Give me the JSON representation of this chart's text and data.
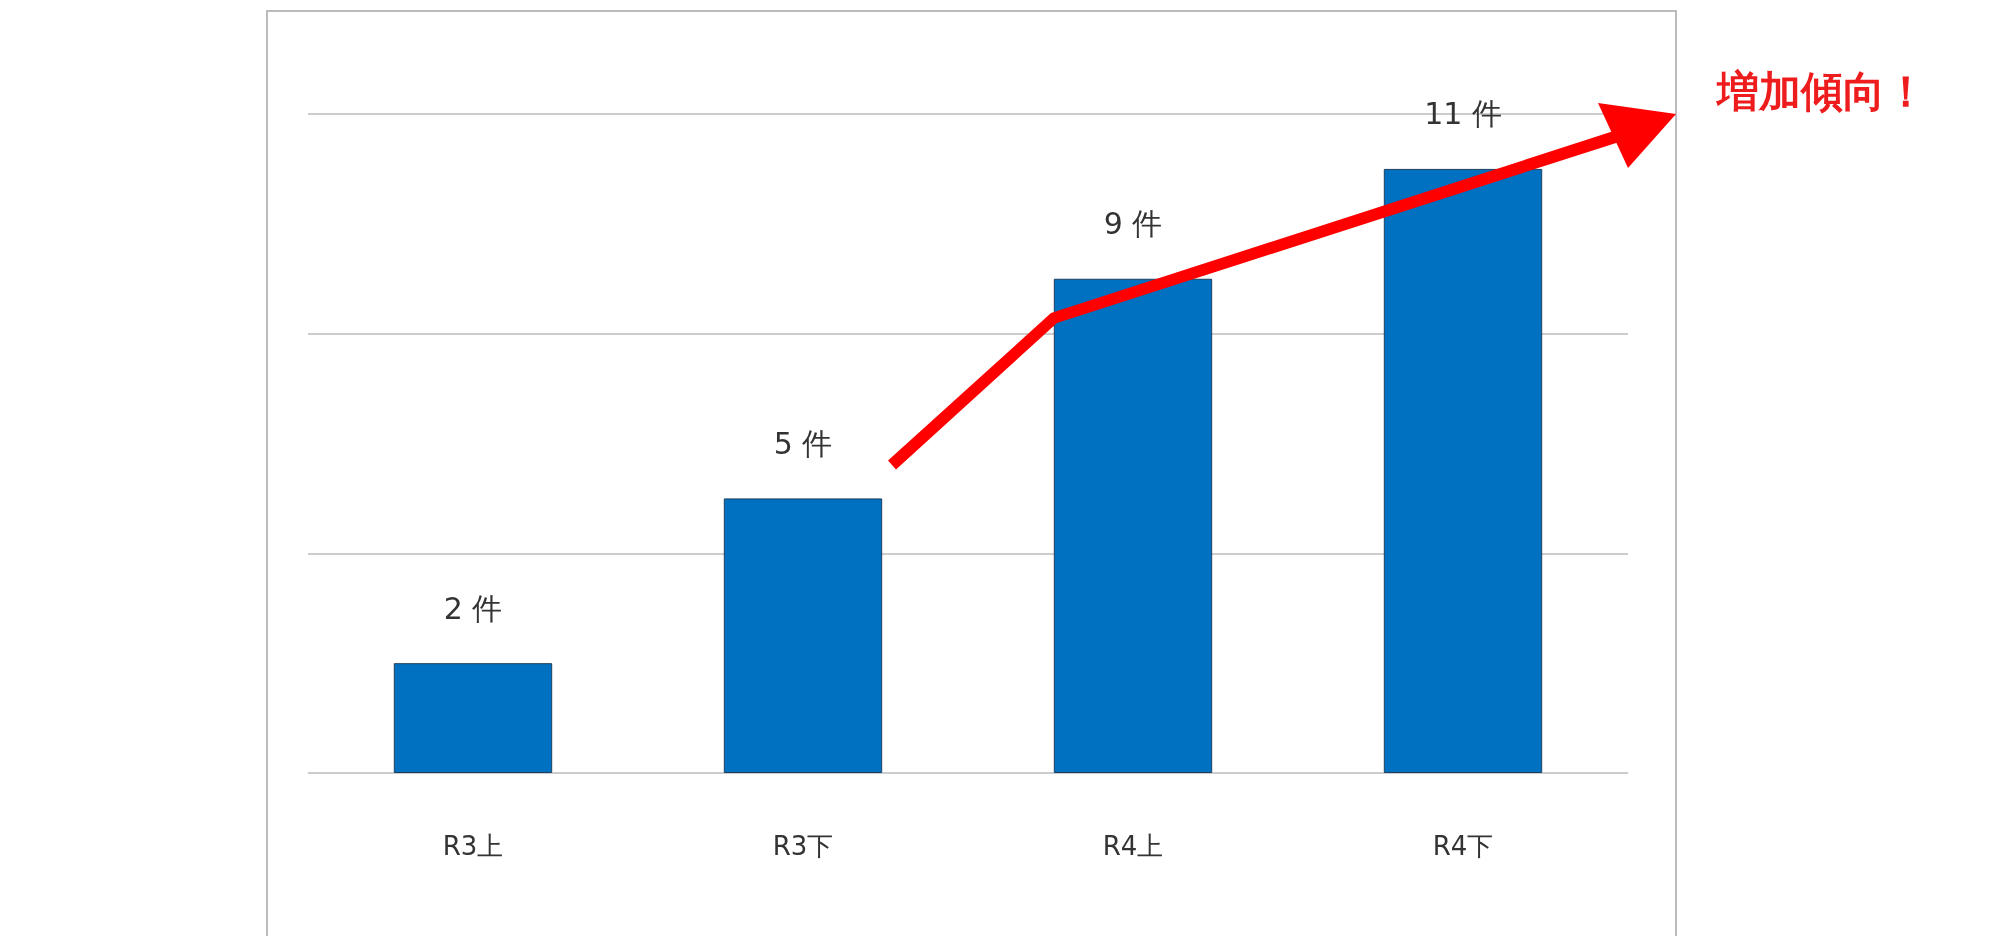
{
  "chart_data": {
    "type": "bar",
    "categories": [
      "R3上",
      "R3下",
      "R4上",
      "R4下"
    ],
    "values": [
      2,
      5,
      9,
      11
    ],
    "value_labels": [
      "2 件",
      "5 件",
      "9 件",
      "11 件"
    ],
    "color": "#0070c0",
    "ylim": [
      0,
      12
    ],
    "yticks": [
      {
        "value": 0,
        "label": null
      },
      {
        "value": 4,
        "label": null
      },
      {
        "value": 8,
        "label": null
      },
      {
        "value": 12,
        "label": null
      }
    ],
    "tick_labels": "x",
    "grid": "y",
    "annotations": [
      "増加傾向！"
    ]
  }
}
